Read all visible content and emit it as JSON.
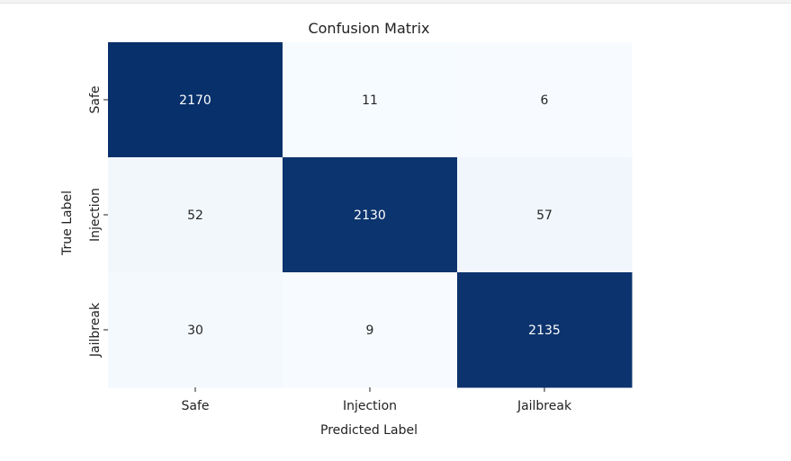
{
  "chart_data": {
    "type": "heatmap",
    "title": "Confusion Matrix",
    "xlabel": "Predicted Label",
    "ylabel": "True Label",
    "x_categories": [
      "Safe",
      "Injection",
      "Jailbreak"
    ],
    "y_categories": [
      "Safe",
      "Injection",
      "Jailbreak"
    ],
    "values": [
      [
        2170,
        11,
        6
      ],
      [
        52,
        2130,
        57
      ],
      [
        30,
        9,
        2135
      ]
    ],
    "colormap": "Blues",
    "colorbar": false,
    "colors": {
      "low": "#f7fbff",
      "high": "#08306b",
      "text_dark": "#262626",
      "text_light": "#ffffff"
    }
  }
}
